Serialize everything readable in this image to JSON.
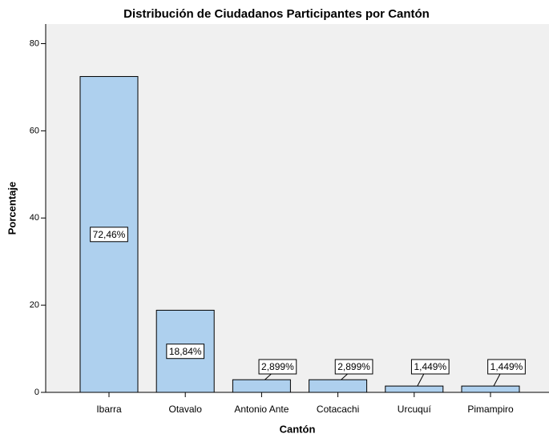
{
  "chart_data": {
    "type": "bar",
    "title": "Distribución de Ciudadanos Participantes por Cantón",
    "xlabel": "Cantón",
    "ylabel": "Porcentaje",
    "categories": [
      "Ibarra",
      "Otavalo",
      "Antonio Ante",
      "Cotacachi",
      "Urcuquí",
      "Pimampiro"
    ],
    "values": [
      72.46,
      18.84,
      2.899,
      2.899,
      1.449,
      1.449
    ],
    "value_labels": [
      "72,46%",
      "18,84%",
      "2,899%",
      "2,899%",
      "1,449%",
      "1,449%"
    ],
    "color": "#aed0ee",
    "ylim": [
      0,
      84.5
    ],
    "yticks": [
      0,
      20,
      40,
      60,
      80
    ],
    "grid": false
  }
}
